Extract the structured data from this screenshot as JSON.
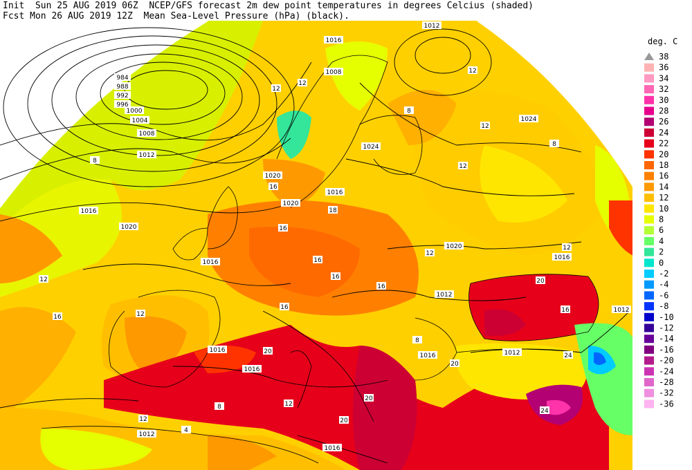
{
  "header": {
    "line1": "Init  Sun 25 AUG 2019 06Z  NCEP/GFS forecast 2m dew point temperatures in degrees Celcius (shaded)",
    "line2": "Fcst Mon 26 AUG 2019 12Z  Mean Sea-Level Pressure (hPa) (black)."
  },
  "colorbar": {
    "unit": "deg. C",
    "levels": [
      {
        "label": "38",
        "color": "#999999"
      },
      {
        "label": "36",
        "color": "#ffb3b3"
      },
      {
        "label": "34",
        "color": "#ff99c2"
      },
      {
        "label": "32",
        "color": "#ff66b3"
      },
      {
        "label": "30",
        "color": "#ff33aa"
      },
      {
        "label": "28",
        "color": "#e6008c"
      },
      {
        "label": "26",
        "color": "#b30073"
      },
      {
        "label": "24",
        "color": "#cc0033"
      },
      {
        "label": "22",
        "color": "#e6001a"
      },
      {
        "label": "20",
        "color": "#ff3300"
      },
      {
        "label": "18",
        "color": "#ff6600"
      },
      {
        "label": "16",
        "color": "#ff8000"
      },
      {
        "label": "14",
        "color": "#ff9900"
      },
      {
        "label": "12",
        "color": "#ffbf00"
      },
      {
        "label": "10",
        "color": "#ffe600"
      },
      {
        "label": "8",
        "color": "#e6ff00"
      },
      {
        "label": "6",
        "color": "#b3ff33"
      },
      {
        "label": "4",
        "color": "#66ff66"
      },
      {
        "label": "2",
        "color": "#33e699"
      },
      {
        "label": "0",
        "color": "#00e6cc"
      },
      {
        "label": "-2",
        "color": "#00ccff"
      },
      {
        "label": "-4",
        "color": "#0099ff"
      },
      {
        "label": "-6",
        "color": "#0066ff"
      },
      {
        "label": "-8",
        "color": "#0033ff"
      },
      {
        "label": "-10",
        "color": "#0000cc"
      },
      {
        "label": "-12",
        "color": "#330099"
      },
      {
        "label": "-14",
        "color": "#660099"
      },
      {
        "label": "-16",
        "color": "#800080"
      },
      {
        "label": "-20",
        "color": "#b31a8c"
      },
      {
        "label": "-24",
        "color": "#cc33b3"
      },
      {
        "label": "-28",
        "color": "#e066cc"
      },
      {
        "label": "-32",
        "color": "#f08fe0"
      },
      {
        "label": "-36",
        "color": "#ffb3f0"
      }
    ]
  },
  "isobar_labels": [
    "984",
    "988",
    "992",
    "996",
    "1000",
    "1004",
    "1008",
    "1012",
    "1016",
    "1020",
    "1016",
    "1012",
    "1008",
    "1016",
    "1020",
    "1024",
    "1024",
    "1020",
    "1016",
    "1012",
    "1012",
    "1016",
    "1016",
    "1016",
    "1012",
    "1016",
    "1012",
    "1020",
    "1016"
  ],
  "dewpoint_labels": [
    "8",
    "12",
    "12",
    "12",
    "8",
    "16",
    "12",
    "12",
    "8",
    "12",
    "16",
    "12",
    "16",
    "16",
    "16",
    "16",
    "20",
    "20",
    "20",
    "24",
    "20",
    "12",
    "8",
    "12",
    "4",
    "20",
    "24",
    "8",
    "12",
    "16",
    "18",
    "16",
    "12"
  ]
}
